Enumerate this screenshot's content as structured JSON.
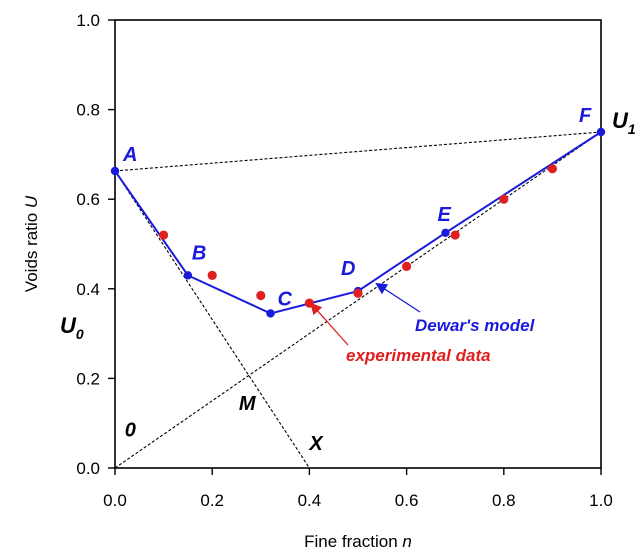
{
  "chart_data": {
    "type": "scatter",
    "xlabel_main": "Fine fraction ",
    "xlabel_var": "n",
    "ylabel_main": "Voids ratio ",
    "ylabel_var": "U",
    "xlim": [
      0,
      1
    ],
    "ylim": [
      0,
      1
    ],
    "xticks": [
      "0.0",
      "0.2",
      "0.4",
      "0.6",
      "0.8",
      "1.0"
    ],
    "yticks": [
      "0.0",
      "0.2",
      "0.4",
      "0.6",
      "0.8",
      "1.0"
    ],
    "grid": false,
    "series": [
      {
        "name": "Dewar's model",
        "color": "#1a1adc",
        "style": "line-with-markers",
        "points": [
          [
            0,
            0.663
          ],
          [
            0.15,
            0.43
          ],
          [
            0.32,
            0.345
          ],
          [
            0.5,
            0.395
          ],
          [
            0.68,
            0.525
          ],
          [
            1.0,
            0.75
          ]
        ]
      },
      {
        "name": "experimental data",
        "color": "#e02020",
        "style": "markers",
        "points": [
          [
            0.1,
            0.52
          ],
          [
            0.2,
            0.43
          ],
          [
            0.3,
            0.385
          ],
          [
            0.4,
            0.368
          ],
          [
            0.5,
            0.39
          ],
          [
            0.6,
            0.45
          ],
          [
            0.7,
            0.52
          ],
          [
            0.8,
            0.6
          ],
          [
            0.9,
            0.668
          ]
        ]
      }
    ],
    "reference_lines": [
      {
        "from": [
          0,
          0.663
        ],
        "to": [
          1.0,
          0.75
        ]
      },
      {
        "from": [
          0,
          0.663
        ],
        "to": [
          0.4,
          0
        ]
      },
      {
        "from": [
          0,
          0
        ],
        "to": [
          1.0,
          0.75
        ]
      }
    ],
    "point_labels": [
      {
        "text": "A",
        "x": 0,
        "y": 0.663,
        "color": "#1a1adc"
      },
      {
        "text": "B",
        "x": 0.15,
        "y": 0.43,
        "color": "#1a1adc"
      },
      {
        "text": "C",
        "x": 0.32,
        "y": 0.345,
        "color": "#1a1adc"
      },
      {
        "text": "D",
        "x": 0.5,
        "y": 0.395,
        "color": "#1a1adc"
      },
      {
        "text": "E",
        "x": 0.68,
        "y": 0.525,
        "color": "#1a1adc"
      },
      {
        "text": "F",
        "x": 1.0,
        "y": 0.75,
        "color": "#1a1adc"
      }
    ],
    "construction_labels": [
      {
        "text": "M",
        "x": 0.255,
        "y": 0.13
      },
      {
        "text": "0",
        "x": 0.02,
        "y": 0.07
      },
      {
        "text": "X",
        "x": 0.4,
        "y": 0.04
      }
    ],
    "u0_label": {
      "main": "U",
      "sub": "0"
    },
    "u1_label": {
      "main": "U",
      "sub": "1"
    },
    "annotations": [
      {
        "text": "Dewar's model",
        "color": "#1a1adc",
        "arrow_to": [
          0.54,
          0.41
        ]
      },
      {
        "text": "experimental data",
        "color": "#e02020",
        "arrow_to": [
          0.405,
          0.365
        ]
      }
    ]
  }
}
